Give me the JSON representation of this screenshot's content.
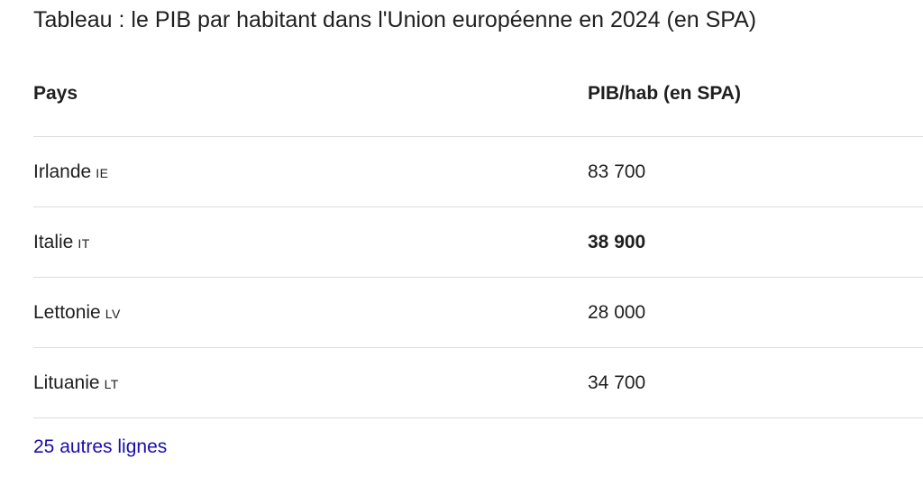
{
  "title": "Tableau : le PIB par habitant dans l'Union européenne en 2024 (en SPA)",
  "table": {
    "header": [
      "Pays",
      "PIB/hab (en SPA)"
    ],
    "rows": [
      {
        "country": "Irlande",
        "code": "IE",
        "value": "83 700",
        "bold": false
      },
      {
        "country": "Italie",
        "code": "IT",
        "value": "38 900",
        "bold": true
      },
      {
        "country": "Lettonie",
        "code": "LV",
        "value": "28 000",
        "bold": false
      },
      {
        "country": "Lituanie",
        "code": "LT",
        "value": "34 700",
        "bold": false
      }
    ]
  },
  "more_link": "25 autres lignes"
}
